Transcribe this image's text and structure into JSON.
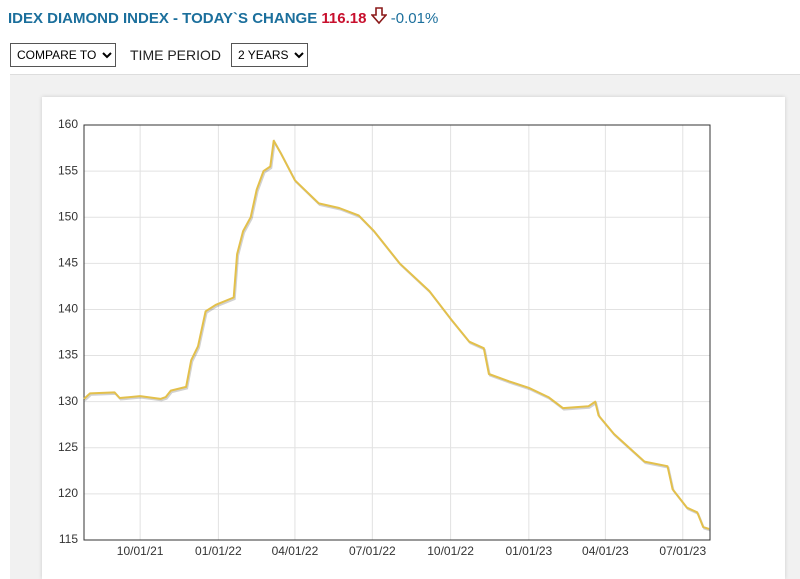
{
  "header": {
    "title": "IDEX DIAMOND INDEX - TODAY`S CHANGE",
    "value": "116.18",
    "change": "-0.01%"
  },
  "controls": {
    "compare": "COMPARE TO",
    "time_period_label": "TIME PERIOD",
    "period": "2 YEARS"
  },
  "chart_data": {
    "type": "line",
    "grid": true,
    "xlim": [
      "07/27/21",
      "08/02/23"
    ],
    "xticks": [
      "10/01/21",
      "01/01/22",
      "04/01/22",
      "07/01/22",
      "10/01/22",
      "01/01/23",
      "04/01/23",
      "07/01/23"
    ],
    "ylim": [
      115,
      160
    ],
    "yticks": [
      115,
      120,
      125,
      130,
      135,
      140,
      145,
      150,
      155,
      160
    ],
    "series": [
      {
        "color": "#e3c04b",
        "x": [
          "07/27/21",
          "08/03/21",
          "09/01/21",
          "09/07/21",
          "10/01/21",
          "10/25/21",
          "10/31/21",
          "11/06/21",
          "11/24/21",
          "11/30/21",
          "12/08/21",
          "12/17/21",
          "12/29/21",
          "01/19/22",
          "01/23/22",
          "01/30/22",
          "02/08/22",
          "02/15/22",
          "02/23/22",
          "03/03/22",
          "03/07/22",
          "03/15/22",
          "04/01/22",
          "04/29/22",
          "05/23/22",
          "06/15/22",
          "07/03/22",
          "08/02/22",
          "09/06/22",
          "10/01/22",
          "10/23/22",
          "11/09/22",
          "11/15/22",
          "12/09/22",
          "01/01/23",
          "01/24/23",
          "02/10/23",
          "03/12/23",
          "03/20/23",
          "03/24/23",
          "04/11/23",
          "04/29/23",
          "05/17/23",
          "06/13/23",
          "06/19/23",
          "07/06/23",
          "07/18/23",
          "07/25/23",
          "08/01/23"
        ],
        "values": [
          130.3,
          130.9,
          131.0,
          130.4,
          130.6,
          130.3,
          130.5,
          131.2,
          131.6,
          134.5,
          136.0,
          139.8,
          140.5,
          141.3,
          146.0,
          148.5,
          150.0,
          153.0,
          155.0,
          155.5,
          158.3,
          157.0,
          154.0,
          151.5,
          151.0,
          150.2,
          148.5,
          145.0,
          142.0,
          139.0,
          136.5,
          135.8,
          133.0,
          132.2,
          131.5,
          130.5,
          129.3,
          129.5,
          130.0,
          128.5,
          126.5,
          125.0,
          123.5,
          123.0,
          120.5,
          118.5,
          118.0,
          116.4,
          116.2
        ]
      }
    ]
  }
}
